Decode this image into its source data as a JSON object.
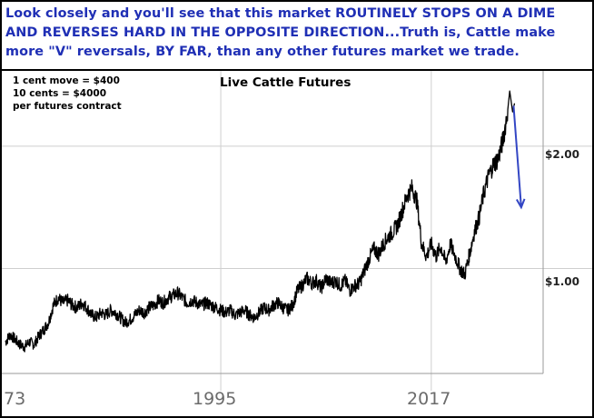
{
  "header": {
    "line1": "Look closely and you'll see that this market ROUTINELY STOPS ON A DIME",
    "line2": "AND REVERSES HARD IN THE OPPOSITE DIRECTION...Truth is, Cattle make",
    "line3": "more \"V\" reversals, BY FAR, than any other futures market we trade."
  },
  "note": {
    "line1": "1 cent move = $400",
    "line2": "10 cents = $4000",
    "line3": "per futures contract"
  },
  "colors": {
    "header_text": "#1f2fb5",
    "price_line": "#000000",
    "arrow": "#3346c4",
    "grid": "#cfcfcf"
  },
  "chart_data": {
    "type": "line",
    "title": "Live Cattle Futures",
    "xlabel": "",
    "ylabel": "",
    "x_tick_labels": [
      "73",
      "1995",
      "2017"
    ],
    "y_tick_labels": [
      "$1.00",
      "$2.00"
    ],
    "y_ticks": [
      1.0,
      2.0
    ],
    "xlim": [
      1972.5,
      2028.5
    ],
    "ylim": [
      0.15,
      2.6
    ],
    "grid": true,
    "series": [
      {
        "x": [
          1972.5,
          1973,
          1973.5,
          1974,
          1974.5,
          1975,
          1975.5,
          1976,
          1976.5,
          1977,
          1977.5,
          1978,
          1978.5,
          1979,
          1979.5,
          1980,
          1980.5,
          1981,
          1981.5,
          1982,
          1982.5,
          1983,
          1983.5,
          1984,
          1984.5,
          1985,
          1985.5,
          1986,
          1986.5,
          1987,
          1987.5,
          1988,
          1988.5,
          1989,
          1989.5,
          1990,
          1990.5,
          1991,
          1991.5,
          1992,
          1992.5,
          1993,
          1993.5,
          1994,
          1994.5,
          1995,
          1995.5,
          1996,
          1996.5,
          1997,
          1997.5,
          1998,
          1998.5,
          1999,
          1999.5,
          2000,
          2000.5,
          2001,
          2001.5,
          2002,
          2002.5,
          2003,
          2003.5,
          2004,
          2004.5,
          2005,
          2005.5,
          2006,
          2006.5,
          2007,
          2007.5,
          2008,
          2008.5,
          2009,
          2009.5,
          2010,
          2010.5,
          2011,
          2011.5,
          2012,
          2012.5,
          2013,
          2013.5,
          2014,
          2014.5,
          2015,
          2015.5,
          2016,
          2016.5,
          2017,
          2017.5,
          2018,
          2018.5,
          2019,
          2019.5,
          2020,
          2020.5,
          2021,
          2021.5,
          2022,
          2022.5,
          2023,
          2023.5,
          2024,
          2024.5,
          2025
        ],
        "values": [
          0.4,
          0.46,
          0.42,
          0.38,
          0.36,
          0.4,
          0.38,
          0.45,
          0.5,
          0.56,
          0.7,
          0.76,
          0.72,
          0.74,
          0.7,
          0.68,
          0.72,
          0.68,
          0.62,
          0.6,
          0.64,
          0.62,
          0.66,
          0.64,
          0.6,
          0.56,
          0.58,
          0.62,
          0.66,
          0.64,
          0.68,
          0.7,
          0.74,
          0.72,
          0.76,
          0.78,
          0.8,
          0.76,
          0.72,
          0.74,
          0.72,
          0.7,
          0.72,
          0.7,
          0.68,
          0.66,
          0.64,
          0.66,
          0.62,
          0.64,
          0.66,
          0.62,
          0.6,
          0.64,
          0.68,
          0.66,
          0.7,
          0.72,
          0.68,
          0.66,
          0.7,
          0.82,
          0.86,
          0.92,
          0.88,
          0.9,
          0.84,
          0.92,
          0.88,
          0.9,
          0.86,
          0.9,
          0.82,
          0.86,
          0.88,
          0.98,
          1.08,
          1.16,
          1.12,
          1.2,
          1.26,
          1.3,
          1.36,
          1.48,
          1.6,
          1.66,
          1.55,
          1.2,
          1.1,
          1.2,
          1.1,
          1.18,
          1.05,
          1.2,
          1.1,
          1.0,
          0.95,
          1.12,
          1.3,
          1.42,
          1.62,
          1.76,
          1.85,
          1.9,
          2.05,
          2.3
        ]
      }
    ],
    "annotation": "down-arrow-after-peak"
  }
}
